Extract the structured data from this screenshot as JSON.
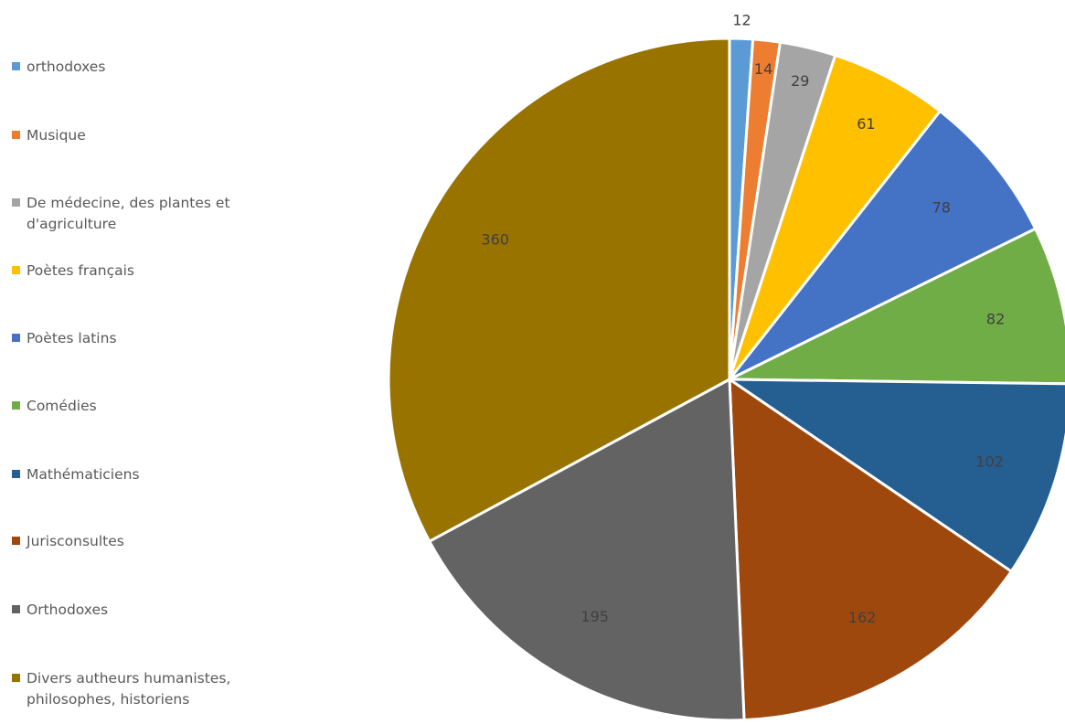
{
  "chart_data": {
    "type": "pie",
    "title": "",
    "categories": [
      "orthodoxes",
      "Musique",
      "De médecine, des plantes et d'agriculture",
      "Poètes français",
      "Poètes latins",
      "Comédies",
      "Mathématiciens",
      "Jurisconsultes",
      "Orthodoxes",
      "Divers autheurs humanistes, philosophes, historiens"
    ],
    "values": [
      12,
      14,
      29,
      61,
      78,
      82,
      102,
      162,
      195,
      360
    ],
    "value_labels": [
      "12",
      "14",
      "29",
      "61",
      "78",
      "82",
      "102",
      "162",
      "195",
      "360"
    ],
    "colors": [
      "#5b9bd5",
      "#ed7d31",
      "#a5a5a5",
      "#ffc000",
      "#4472c4",
      "#70ad47",
      "#255e91",
      "#9e480e",
      "#636363",
      "#997300"
    ],
    "legend_position": "left",
    "data_labels": true
  }
}
